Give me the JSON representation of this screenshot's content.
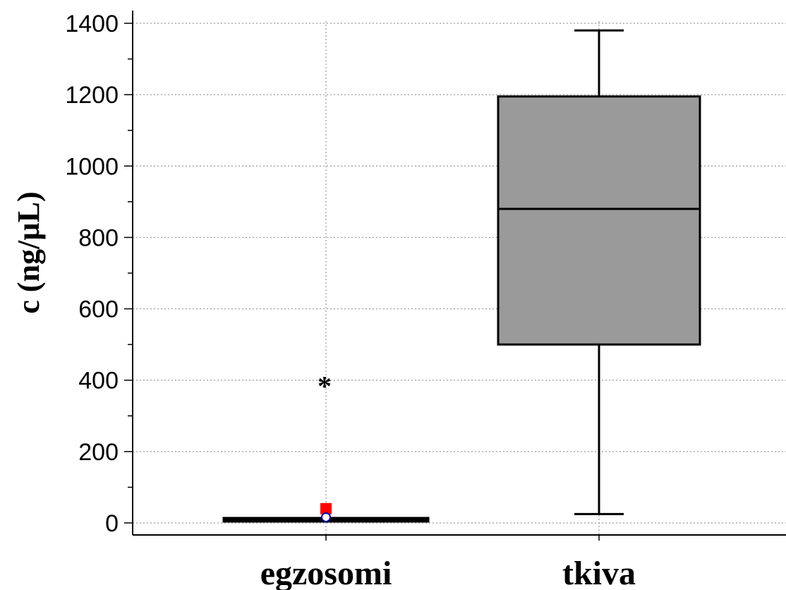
{
  "chart_data": {
    "type": "box",
    "title": "",
    "xlabel": "",
    "ylabel": "c (ng/µL)",
    "ylim": [
      0,
      1400
    ],
    "yticks": [
      0,
      200,
      400,
      600,
      800,
      1000,
      1200,
      1400
    ],
    "grid": true,
    "categories": [
      "egzosomi",
      "tkiva"
    ],
    "boxes": [
      {
        "category": "egzosomi",
        "min": 8,
        "q1": 8,
        "median": 8,
        "q3": 10,
        "max": 10,
        "mean": 40,
        "outliers": [
          400
        ],
        "outlier_marker": "*",
        "fill": "#000000"
      },
      {
        "category": "tkiva",
        "min": 25,
        "q1": 500,
        "median": 880,
        "q3": 1195,
        "max": 1380,
        "fill": "#9a9a9a"
      }
    ],
    "colors": {
      "mean_marker": "#ff0000",
      "median_marker": "#0000aa",
      "grid": "#9a9a9a",
      "axis": "#000000"
    }
  }
}
